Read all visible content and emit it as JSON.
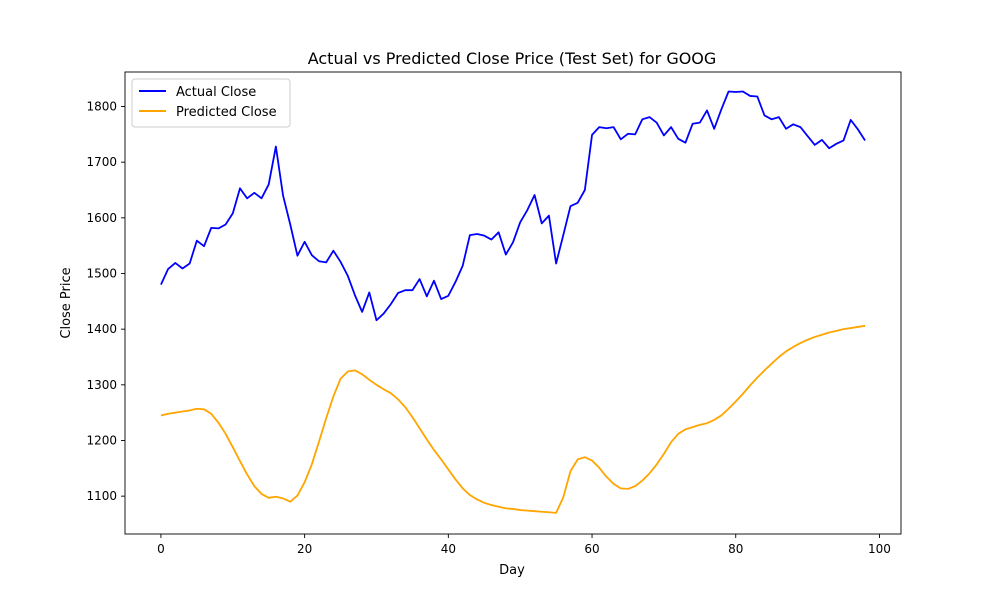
{
  "chart_data": {
    "type": "line",
    "title": "Actual vs Predicted Close Price (Test Set) for GOOG",
    "xlabel": "Day",
    "ylabel": "Close Price",
    "xlim": [
      -5,
      103
    ],
    "ylim": [
      1032,
      1862
    ],
    "xticks": [
      0,
      20,
      40,
      60,
      80,
      100
    ],
    "yticks": [
      1100,
      1200,
      1300,
      1400,
      1500,
      1600,
      1700,
      1800
    ],
    "grid": false,
    "legend_position": "top-left",
    "series": [
      {
        "name": "Actual Close",
        "color": "#0000ff",
        "values": [
          1480,
          1508,
          1519,
          1509,
          1518,
          1559,
          1549,
          1582,
          1581,
          1588,
          1608,
          1653,
          1635,
          1645,
          1635,
          1660,
          1728,
          1640,
          1588,
          1532,
          1557,
          1533,
          1522,
          1520,
          1541,
          1521,
          1496,
          1461,
          1431,
          1466,
          1416,
          1428,
          1445,
          1465,
          1470,
          1470,
          1490,
          1459,
          1487,
          1454,
          1460,
          1485,
          1514,
          1569,
          1571,
          1568,
          1561,
          1574,
          1534,
          1556,
          1592,
          1614,
          1641,
          1590,
          1604,
          1518,
          1569,
          1621,
          1627,
          1650,
          1749,
          1763,
          1761,
          1763,
          1741,
          1751,
          1750,
          1777,
          1781,
          1771,
          1748,
          1763,
          1742,
          1735,
          1769,
          1771,
          1793,
          1760,
          1795,
          1827,
          1826,
          1827,
          1819,
          1818,
          1784,
          1777,
          1781,
          1760,
          1768,
          1763,
          1747,
          1731,
          1740,
          1725,
          1733,
          1739,
          1776,
          1759,
          1739
        ]
      },
      {
        "name": "Predicted Close",
        "color": "#ffa500",
        "values": [
          1245,
          1248,
          1250,
          1252,
          1254,
          1257,
          1256,
          1248,
          1232,
          1212,
          1188,
          1163,
          1139,
          1118,
          1104,
          1097,
          1099,
          1096,
          1090,
          1101,
          1125,
          1157,
          1198,
          1240,
          1279,
          1311,
          1324,
          1326,
          1319,
          1309,
          1300,
          1292,
          1285,
          1274,
          1260,
          1242,
          1222,
          1202,
          1183,
          1166,
          1148,
          1130,
          1114,
          1102,
          1094,
          1088,
          1084,
          1081,
          1078,
          1077,
          1075,
          1074,
          1073,
          1072,
          1071,
          1070,
          1098,
          1145,
          1166,
          1170,
          1164,
          1151,
          1135,
          1122,
          1114,
          1113,
          1118,
          1128,
          1141,
          1157,
          1176,
          1197,
          1212,
          1220,
          1224,
          1228,
          1231,
          1237,
          1245,
          1257,
          1270,
          1284,
          1299,
          1313,
          1326,
          1338,
          1350,
          1360,
          1368,
          1375,
          1381,
          1386,
          1390,
          1394,
          1397,
          1400,
          1402,
          1404,
          1406
        ]
      }
    ]
  }
}
